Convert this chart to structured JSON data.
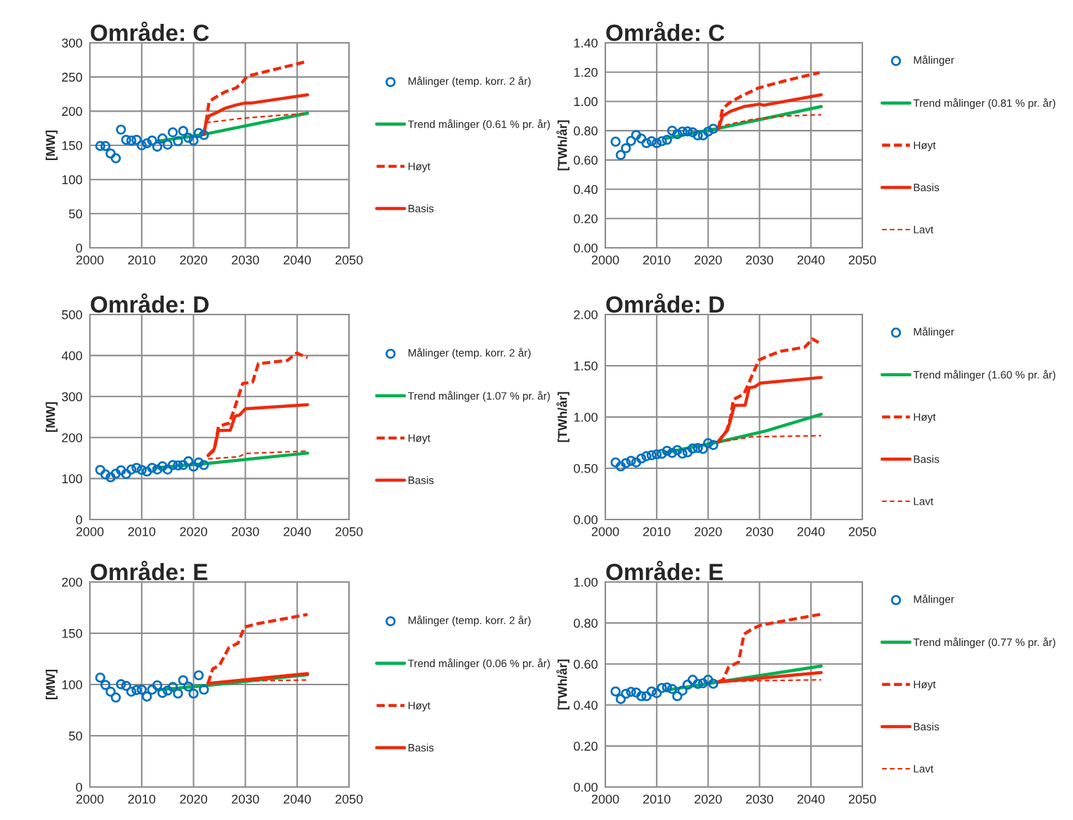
{
  "chart_data": [
    {
      "type": "line",
      "title": "Område: C",
      "ylabel": "[MW]",
      "xlim": [
        2000,
        2050
      ],
      "xticks": [
        2000,
        2010,
        2020,
        2030,
        2040,
        2050
      ],
      "ylim": [
        0,
        300
      ],
      "yticks": [
        0,
        50,
        100,
        150,
        200,
        250,
        300
      ],
      "grid": true,
      "legend": "right",
      "series": [
        {
          "name": "Målinger (temp. korr. 2 år)",
          "type": "scatter",
          "marker": "circle",
          "color": "#0070c0",
          "x": [
            2002,
            2003,
            2004,
            2005,
            2006,
            2007,
            2008,
            2009,
            2010,
            2011,
            2012,
            2013,
            2014,
            2015,
            2016,
            2017,
            2018,
            2019,
            2020,
            2021,
            2022
          ],
          "values": [
            149,
            149,
            138,
            131,
            173,
            158,
            157,
            158,
            150,
            153,
            157,
            148,
            160,
            151,
            169,
            156,
            171,
            161,
            157,
            168,
            165
          ]
        },
        {
          "name": "Trend målinger (0.61 % pr. år)",
          "type": "line",
          "line_style": "solid",
          "color": "#00b050",
          "x": [
            2013,
            2022,
            2042
          ],
          "values": [
            156,
            166,
            197
          ]
        },
        {
          "name": "Høyt",
          "type": "line",
          "line_style": "dashed",
          "color": "#ee2a0c",
          "x": [
            2022,
            2022.6,
            2023,
            2024.2,
            2026,
            2028.2,
            2029.3,
            2030.3,
            2042
          ],
          "values": [
            166,
            193,
            214,
            220,
            228,
            234,
            241,
            251,
            273
          ]
        },
        {
          "name": "Basis",
          "type": "line",
          "line_style": "solid",
          "color": "#ee2a0c",
          "x": [
            2022,
            2022.4,
            2023,
            2024.2,
            2026,
            2028.2,
            2030,
            2031.3,
            2042
          ],
          "values": [
            166,
            183,
            193,
            197,
            204,
            209,
            212,
            212,
            224
          ]
        },
        {
          "type": "line",
          "line_style": "dotted",
          "color": "#ee2a0c",
          "x": [
            2022.4,
            2023.2,
            2030,
            2042
          ],
          "values": [
            183,
            184,
            190,
            197
          ]
        }
      ]
    },
    {
      "type": "line",
      "title": "Område: C",
      "ylabel": "[TWh/år]",
      "xlim": [
        2000,
        2050
      ],
      "xticks": [
        2000,
        2010,
        2020,
        2030,
        2040,
        2050
      ],
      "ylim": [
        0,
        1.4
      ],
      "yticks": [
        {
          "value": 0,
          "label": "0.00"
        },
        {
          "value": 0.2,
          "label": "0.20"
        },
        {
          "value": 0.4,
          "label": "0.40"
        },
        {
          "value": 0.6,
          "label": "0.60"
        },
        {
          "value": 0.8,
          "label": "0.80"
        },
        {
          "value": 1.0,
          "label": "1.00"
        },
        {
          "value": 1.2,
          "label": "1.20"
        },
        {
          "value": 1.4,
          "label": "1.40"
        }
      ],
      "grid": true,
      "legend": "right",
      "series": [
        {
          "name": "Målinger",
          "type": "scatter",
          "marker": "circle",
          "color": "#0070c0",
          "x": [
            2002,
            2003,
            2004,
            2005,
            2006,
            2007,
            2008,
            2009,
            2010,
            2011,
            2012,
            2013,
            2014,
            2015,
            2016,
            2017,
            2018,
            2019,
            2020,
            2021
          ],
          "values": [
            0.725,
            0.634,
            0.68,
            0.73,
            0.77,
            0.746,
            0.715,
            0.728,
            0.715,
            0.728,
            0.738,
            0.8,
            0.776,
            0.794,
            0.795,
            0.789,
            0.768,
            0.768,
            0.794,
            0.813
          ]
        },
        {
          "name": "Trend målinger (0.81 % pr. år)",
          "type": "line",
          "line_style": "solid",
          "color": "#00b050",
          "x": [
            2012,
            2022,
            2042
          ],
          "values": [
            0.749,
            0.816,
            0.965
          ]
        },
        {
          "name": "Høyt",
          "type": "line",
          "line_style": "dashed",
          "color": "#ee2a0c",
          "x": [
            2022,
            2022.8,
            2024.1,
            2026.5,
            2029.9,
            2035,
            2041.7
          ],
          "values": [
            0.813,
            0.949,
            0.989,
            1.037,
            1.093,
            1.141,
            1.197
          ]
        },
        {
          "name": "Basis",
          "type": "line",
          "line_style": "solid",
          "color": "#ee2a0c",
          "x": [
            2022,
            2022.8,
            2024.4,
            2027,
            2030,
            2030.8,
            2042
          ],
          "values": [
            0.813,
            0.9,
            0.933,
            0.965,
            0.981,
            0.974,
            1.045
          ]
        },
        {
          "name": "Lavt",
          "type": "line",
          "line_style": "dotted",
          "color": "#ee2a0c",
          "x": [
            2022,
            2023.2,
            2028.6,
            2035,
            2042
          ],
          "values": [
            0.813,
            0.837,
            0.877,
            0.9,
            0.909
          ]
        }
      ]
    },
    {
      "type": "line",
      "title": "Område: D",
      "ylabel": "[MW]",
      "xlim": [
        2000,
        2050
      ],
      "xticks": [
        2000,
        2010,
        2020,
        2030,
        2040,
        2050
      ],
      "ylim": [
        0,
        500
      ],
      "yticks": [
        0,
        100,
        200,
        300,
        400,
        500
      ],
      "grid": true,
      "legend": "right",
      "series": [
        {
          "name": "Målinger (temp. korr. 2 år)",
          "type": "scatter",
          "marker": "circle",
          "color": "#0070c0",
          "x": [
            2002,
            2003,
            2004,
            2005,
            2006,
            2007,
            2008,
            2009,
            2010,
            2011,
            2012,
            2013,
            2014,
            2015,
            2016,
            2017,
            2018,
            2019,
            2020,
            2021,
            2022
          ],
          "values": [
            121,
            110,
            103,
            112,
            120,
            111,
            122,
            126,
            121,
            117,
            126,
            122,
            130,
            122,
            133,
            132,
            133,
            142,
            129,
            139,
            133
          ]
        },
        {
          "name": "Trend målinger (1.07 % pr. år)",
          "type": "line",
          "line_style": "solid",
          "color": "#00b050",
          "x": [
            2012.4,
            2022.8,
            2042
          ],
          "values": [
            126,
            137,
            162
          ]
        },
        {
          "name": "Høyt",
          "type": "line",
          "line_style": "dashed",
          "color": "#ee2a0c",
          "x": [
            2022.8,
            2024,
            2024.8,
            2026,
            2026.9,
            2027.7,
            2029.5,
            2031.4,
            2032.5,
            2038.1,
            2039.9,
            2042
          ],
          "values": [
            156,
            169,
            226,
            232,
            235,
            263,
            332,
            335,
            380,
            388,
            406,
            395
          ]
        },
        {
          "name": "Basis",
          "type": "line",
          "line_style": "solid",
          "color": "#ee2a0c",
          "x": [
            2022.8,
            2024,
            2024.8,
            2027.1,
            2028,
            2028.9,
            2030,
            2042
          ],
          "values": [
            156,
            172,
            217,
            218,
            252,
            255,
            270,
            280
          ]
        },
        {
          "type": "line",
          "line_style": "dotted",
          "color": "#ee2a0c",
          "x": [
            2022.8,
            2028.7,
            2030,
            2042
          ],
          "values": [
            148,
            153,
            161,
            167
          ]
        }
      ]
    },
    {
      "type": "line",
      "title": "Område: D",
      "ylabel": "[TWh/år]",
      "xlim": [
        2000,
        2050
      ],
      "xticks": [
        2000,
        2010,
        2020,
        2030,
        2040,
        2050
      ],
      "ylim": [
        0,
        2.0
      ],
      "yticks": [
        {
          "value": 0,
          "label": "0.00"
        },
        {
          "value": 0.5,
          "label": "0.50"
        },
        {
          "value": 1.0,
          "label": "1.00"
        },
        {
          "value": 1.5,
          "label": "1.50"
        },
        {
          "value": 2.0,
          "label": "2.00"
        }
      ],
      "grid": true,
      "legend": "right",
      "series": [
        {
          "name": "Målinger",
          "type": "scatter",
          "marker": "circle",
          "color": "#0070c0",
          "x": [
            2002,
            2003,
            2004,
            2005,
            2006,
            2007,
            2008,
            2009,
            2010,
            2011,
            2012,
            2013,
            2014,
            2015,
            2016,
            2017,
            2018,
            2019,
            2020,
            2021
          ],
          "values": [
            0.557,
            0.518,
            0.55,
            0.573,
            0.557,
            0.595,
            0.618,
            0.627,
            0.636,
            0.641,
            0.67,
            0.65,
            0.677,
            0.643,
            0.655,
            0.693,
            0.698,
            0.689,
            0.745,
            0.727
          ]
        },
        {
          "name": "Trend målinger (1.60 % pr. år)",
          "type": "line",
          "line_style": "solid",
          "color": "#00b050",
          "x": [
            2011.8,
            2021.9,
            2031.2,
            2042
          ],
          "values": [
            0.655,
            0.755,
            0.864,
            1.027
          ]
        },
        {
          "name": "Høyt",
          "type": "line",
          "line_style": "dashed",
          "color": "#ee2a0c",
          "x": [
            2021.9,
            2023.6,
            2024.4,
            2024.9,
            2027,
            2028.2,
            2029.9,
            2032,
            2034.1,
            2038.8,
            2040.3,
            2041.5
          ],
          "values": [
            0.755,
            0.864,
            1.0,
            1.17,
            1.227,
            1.364,
            1.557,
            1.602,
            1.641,
            1.682,
            1.761,
            1.727
          ]
        },
        {
          "name": "Basis",
          "type": "line",
          "line_style": "solid",
          "color": "#ee2a0c",
          "x": [
            2021.9,
            2023.8,
            2024.4,
            2025.1,
            2027.2,
            2028,
            2029.1,
            2030.1,
            2042
          ],
          "values": [
            0.755,
            0.875,
            0.977,
            1.114,
            1.114,
            1.284,
            1.295,
            1.33,
            1.386
          ]
        },
        {
          "name": "Lavt",
          "type": "line",
          "line_style": "dotted",
          "color": "#ee2a0c",
          "x": [
            2021.9,
            2028.6,
            2042
          ],
          "values": [
            0.755,
            0.807,
            0.818
          ]
        }
      ]
    },
    {
      "type": "line",
      "title": "Område: E",
      "ylabel": "[MW]",
      "xlim": [
        2000,
        2050
      ],
      "xticks": [
        2000,
        2010,
        2020,
        2030,
        2040,
        2050
      ],
      "ylim": [
        0,
        200
      ],
      "yticks": [
        0,
        50,
        100,
        150,
        200
      ],
      "grid": true,
      "legend": "right",
      "series": [
        {
          "name": "Målinger (temp. korr. 2 år)",
          "type": "scatter",
          "marker": "circle",
          "color": "#0070c0",
          "x": [
            2002,
            2003,
            2004,
            2005,
            2006,
            2007,
            2008,
            2009,
            2010,
            2011,
            2012,
            2013,
            2014,
            2015,
            2016,
            2017,
            2018,
            2019,
            2020,
            2021,
            2022
          ],
          "values": [
            106.7,
            99.6,
            93,
            87.3,
            100.3,
            98.7,
            93,
            94.6,
            95,
            88.2,
            95,
            99.2,
            91.8,
            94.1,
            97.6,
            91.2,
            104.2,
            98,
            91.2,
            109,
            95
          ]
        },
        {
          "name": "Trend målinger (0.06 % pr. år)",
          "type": "line",
          "line_style": "solid",
          "color": "#00b050",
          "x": [
            2012.9,
            2022.8,
            2042
          ],
          "values": [
            94.6,
            99.2,
            109.5
          ]
        },
        {
          "name": "Høyt",
          "type": "line",
          "line_style": "dashed",
          "color": "#ee2a0c",
          "x": [
            2022.8,
            2023.7,
            2025,
            2026.8,
            2028.6,
            2029.8,
            2032.2,
            2042
          ],
          "values": [
            101,
            115.2,
            118.6,
            135.8,
            140.4,
            156,
            159.2,
            168.3
          ]
        },
        {
          "name": "Basis",
          "type": "line",
          "line_style": "solid",
          "color": "#ee2a0c",
          "x": [
            2022.8,
            2042
          ],
          "values": [
            101,
            110.6
          ]
        },
        {
          "type": "line",
          "line_style": "dotted",
          "color": "#ee2a0c",
          "x": [
            2022.8,
            2028.6,
            2042
          ],
          "values": [
            101,
            103.3,
            104.4
          ]
        }
      ]
    },
    {
      "type": "line",
      "title": "Område: E",
      "ylabel": "[TWh/år]",
      "xlim": [
        2000,
        2050
      ],
      "xticks": [
        2000,
        2010,
        2020,
        2030,
        2040,
        2050
      ],
      "ylim": [
        0,
        1.0
      ],
      "yticks": [
        {
          "value": 0,
          "label": "0.00"
        },
        {
          "value": 0.2,
          "label": "0.20"
        },
        {
          "value": 0.4,
          "label": "0.40"
        },
        {
          "value": 0.6,
          "label": "0.60"
        },
        {
          "value": 0.8,
          "label": "0.80"
        },
        {
          "value": 1.0,
          "label": "1.00"
        }
      ],
      "grid": true,
      "legend": "right",
      "series": [
        {
          "name": "Målinger",
          "type": "scatter",
          "marker": "circle",
          "color": "#0070c0",
          "x": [
            2002,
            2003,
            2004,
            2005,
            2006,
            2007,
            2008,
            2009,
            2010,
            2011,
            2012,
            2013,
            2014,
            2015,
            2016,
            2017,
            2018,
            2019,
            2020,
            2021
          ],
          "values": [
            0.466,
            0.429,
            0.455,
            0.464,
            0.461,
            0.443,
            0.443,
            0.466,
            0.458,
            0.483,
            0.486,
            0.478,
            0.443,
            0.47,
            0.499,
            0.523,
            0.503,
            0.506,
            0.523,
            0.504
          ]
        },
        {
          "name": "Trend målinger (0.77 % pr. år)",
          "type": "line",
          "line_style": "solid",
          "color": "#00b050",
          "x": [
            2011.8,
            2021.9,
            2042
          ],
          "values": [
            0.472,
            0.512,
            0.59
          ]
        },
        {
          "name": "Høyt",
          "type": "line",
          "line_style": "dashed",
          "color": "#ee2a0c",
          "x": [
            2021.9,
            2022.9,
            2024,
            2025.9,
            2027,
            2028.6,
            2030.3,
            2042
          ],
          "values": [
            0.512,
            0.523,
            0.586,
            0.609,
            0.746,
            0.771,
            0.79,
            0.843
          ]
        },
        {
          "name": "Basis",
          "type": "line",
          "line_style": "solid",
          "color": "#ee2a0c",
          "x": [
            2021.9,
            2042
          ],
          "values": [
            0.512,
            0.558
          ]
        },
        {
          "name": "Lavt",
          "type": "line",
          "line_style": "dotted",
          "color": "#ee2a0c",
          "x": [
            2021.9,
            2028.6,
            2042
          ],
          "values": [
            0.512,
            0.518,
            0.523
          ]
        }
      ]
    }
  ]
}
